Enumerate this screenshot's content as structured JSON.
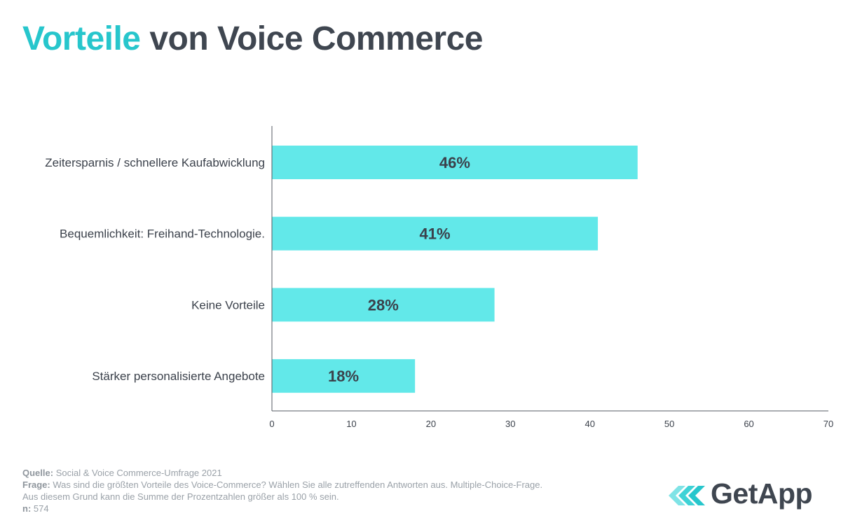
{
  "header": {
    "title_accent": "Vorteile",
    "title_rest": " von Voice Commerce"
  },
  "chart_data": {
    "type": "bar",
    "orientation": "horizontal",
    "categories": [
      "Zeitersparnis / schnellere Kaufabwicklung",
      "Bequemlichkeit: Freihand-Technologie.",
      "Keine Vorteile",
      "Stärker personalisierte Angebote"
    ],
    "values": [
      46,
      41,
      28,
      18
    ],
    "value_labels": [
      "46%",
      "41%",
      "28%",
      "18%"
    ],
    "xlim": [
      0,
      70
    ],
    "xticks": [
      0,
      10,
      20,
      30,
      40,
      50,
      60,
      70
    ],
    "xlabel": "",
    "ylabel": "",
    "grid": false,
    "bar_color": "#62e8e9"
  },
  "footer": {
    "source_label": "Quelle:",
    "source_text": " Social & Voice Commerce-Umfrage 2021",
    "question_label": "Frage:",
    "question_text": " Was sind die größten Vorteile des Voice-Commerce? Wählen Sie alle zutreffenden Antworten aus. Multiple-Choice-Frage.",
    "note_text": "Aus diesem Grund kann die Summe der Prozentzahlen größer als 100 % sein.",
    "n_label": "n:",
    "n_text": " 574"
  },
  "brand": {
    "logo_text": "GetApp",
    "accent_color": "#27c6cc"
  }
}
